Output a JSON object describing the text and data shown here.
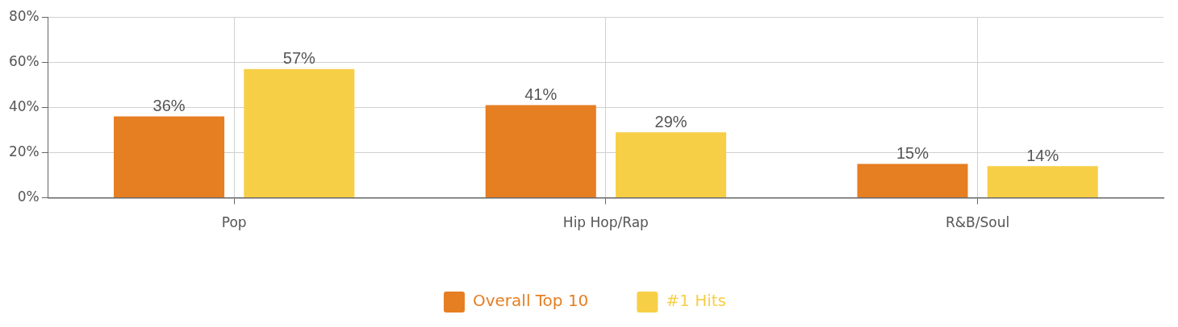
{
  "chart_data": {
    "type": "bar",
    "categories": [
      "Pop",
      "Hip Hop/Rap",
      "R&B/Soul"
    ],
    "series": [
      {
        "name": "Overall Top 10",
        "color": "#e67e22",
        "values": [
          36,
          41,
          15
        ],
        "value_labels": [
          "36%",
          "41%",
          "15%"
        ]
      },
      {
        "name": "#1 Hits",
        "color": "#f7cf47",
        "values": [
          57,
          29,
          14
        ],
        "value_labels": [
          "57%",
          "29%",
          "14%"
        ]
      }
    ],
    "ylim": [
      0,
      80
    ],
    "yticks": [
      {
        "value": 0,
        "label": "0%"
      },
      {
        "value": 20,
        "label": "20%"
      },
      {
        "value": 40,
        "label": "40%"
      },
      {
        "value": 60,
        "label": "60%"
      },
      {
        "value": 80,
        "label": "80%"
      }
    ],
    "grid": true,
    "legend": "bottom"
  }
}
